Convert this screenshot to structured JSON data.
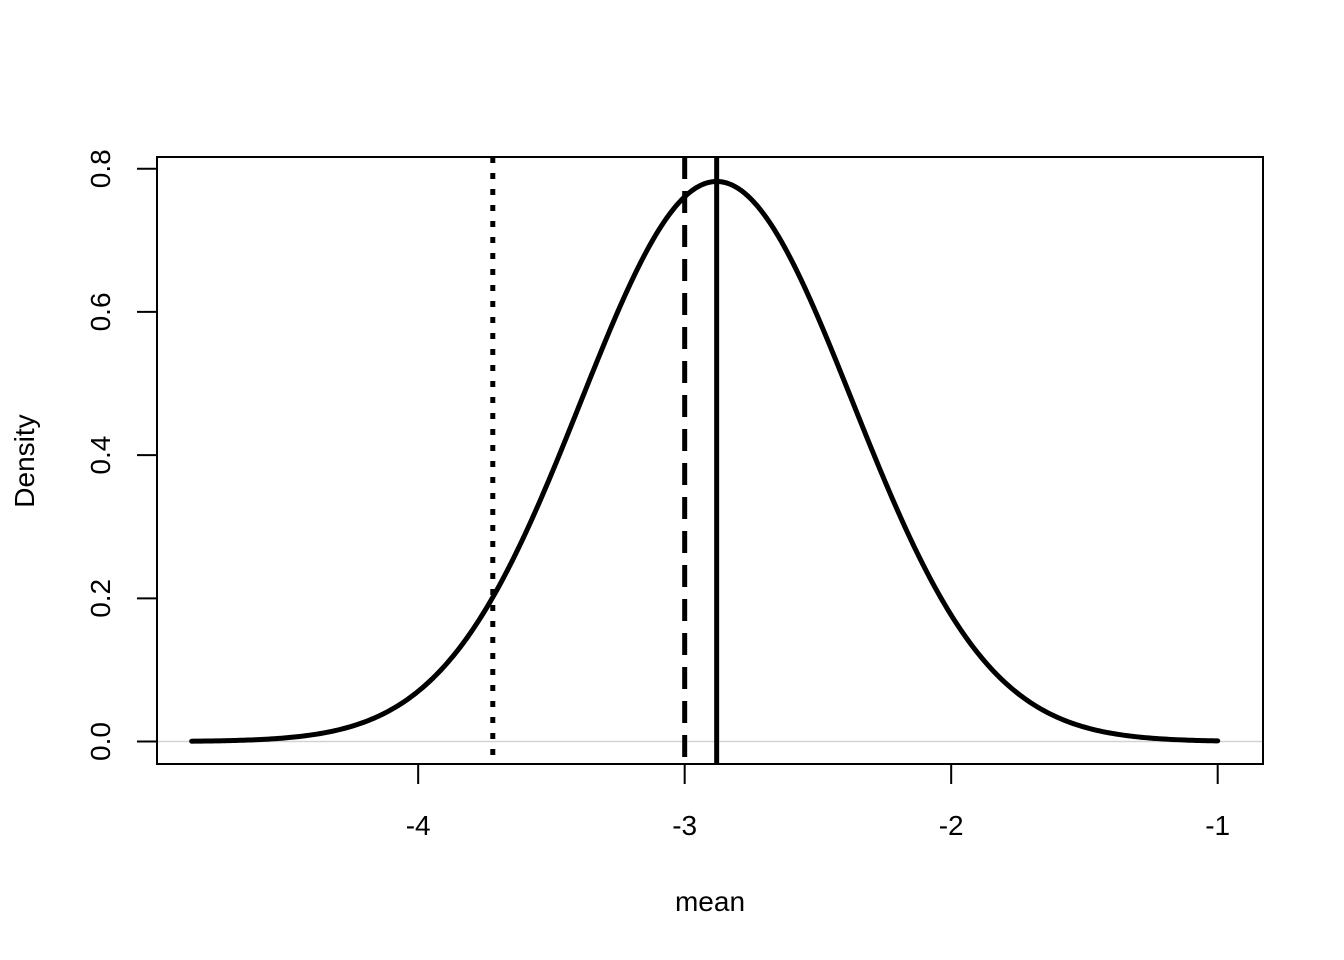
{
  "chart_data": {
    "type": "line",
    "xlabel": "mean",
    "ylabel": "Density",
    "xlim": [
      -4.98,
      -0.83
    ],
    "ylim": [
      -0.0314,
      0.8164
    ],
    "xticks": [
      -4,
      -3,
      -2,
      -1
    ],
    "xtick_labels": [
      "-4",
      "-3",
      "-2",
      "-1"
    ],
    "yticks": [
      0.0,
      0.2,
      0.4,
      0.6,
      0.8
    ],
    "ytick_labels": [
      "0.0",
      "0.2",
      "0.4",
      "0.6",
      "0.8"
    ],
    "grid": false,
    "baseline": 0,
    "density_curve": {
      "distribution": "normal",
      "mean": -2.88,
      "sd": 0.51,
      "x_range": [
        -4.85,
        -1.0
      ],
      "peak_density": 0.782
    },
    "vertical_lines": [
      {
        "x": -3.72,
        "style": "dotted"
      },
      {
        "x": -3.0,
        "style": "dashed"
      },
      {
        "x": -2.88,
        "style": "solid"
      }
    ],
    "colors": {
      "line": "#000000",
      "baseline": "#d3d3d3",
      "background": "#ffffff"
    }
  }
}
